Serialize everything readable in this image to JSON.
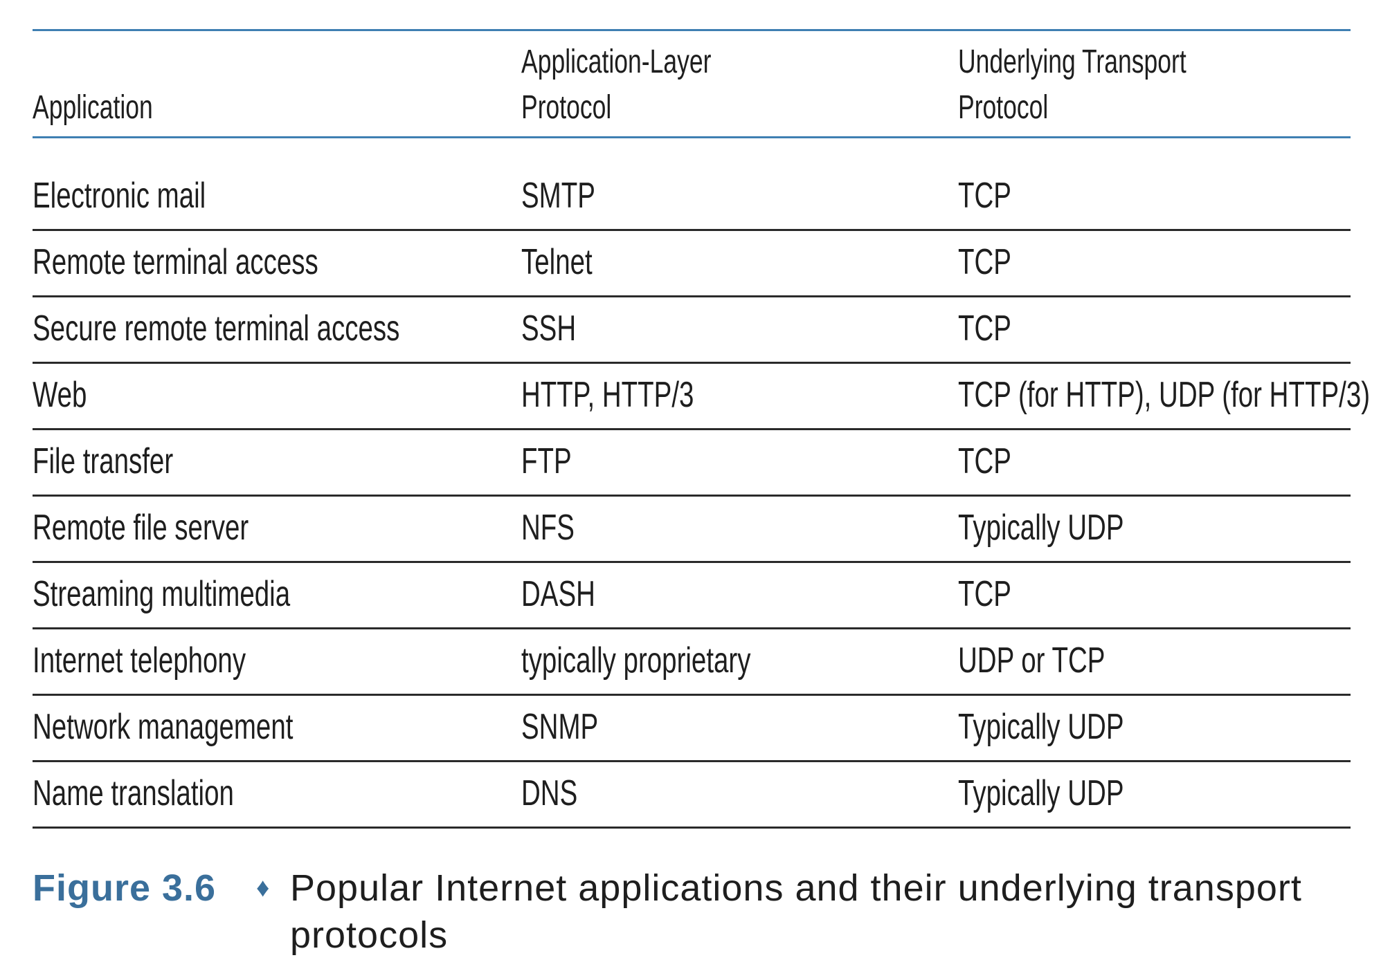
{
  "table": {
    "headers": [
      [
        "Application"
      ],
      [
        "Application-Layer",
        "Protocol"
      ],
      [
        "Underlying Transport",
        "Protocol"
      ]
    ],
    "rows": [
      [
        "Electronic mail",
        "SMTP",
        "TCP"
      ],
      [
        "Remote terminal access",
        "Telnet",
        "TCP"
      ],
      [
        "Secure remote terminal access",
        "SSH",
        "TCP"
      ],
      [
        "Web",
        "HTTP, HTTP/3",
        "TCP (for HTTP), UDP (for HTTP/3)"
      ],
      [
        "File transfer",
        "FTP",
        "TCP"
      ],
      [
        "Remote file server",
        "NFS",
        "Typically UDP"
      ],
      [
        "Streaming multimedia",
        "DASH",
        "TCP"
      ],
      [
        "Internet telephony",
        "typically proprietary",
        "UDP or TCP"
      ],
      [
        "Network management",
        "SNMP",
        "Typically UDP"
      ],
      [
        "Name translation",
        "DNS",
        "Typically UDP"
      ]
    ]
  },
  "caption": {
    "label": "Figure 3.6",
    "separator": "♦",
    "text": "Popular Internet applications and their underlying transport protocols"
  },
  "colors": {
    "accent": "#3a6f9b",
    "rule_blue": "#3f7fb2",
    "rule_dark": "#2a2a2a"
  }
}
